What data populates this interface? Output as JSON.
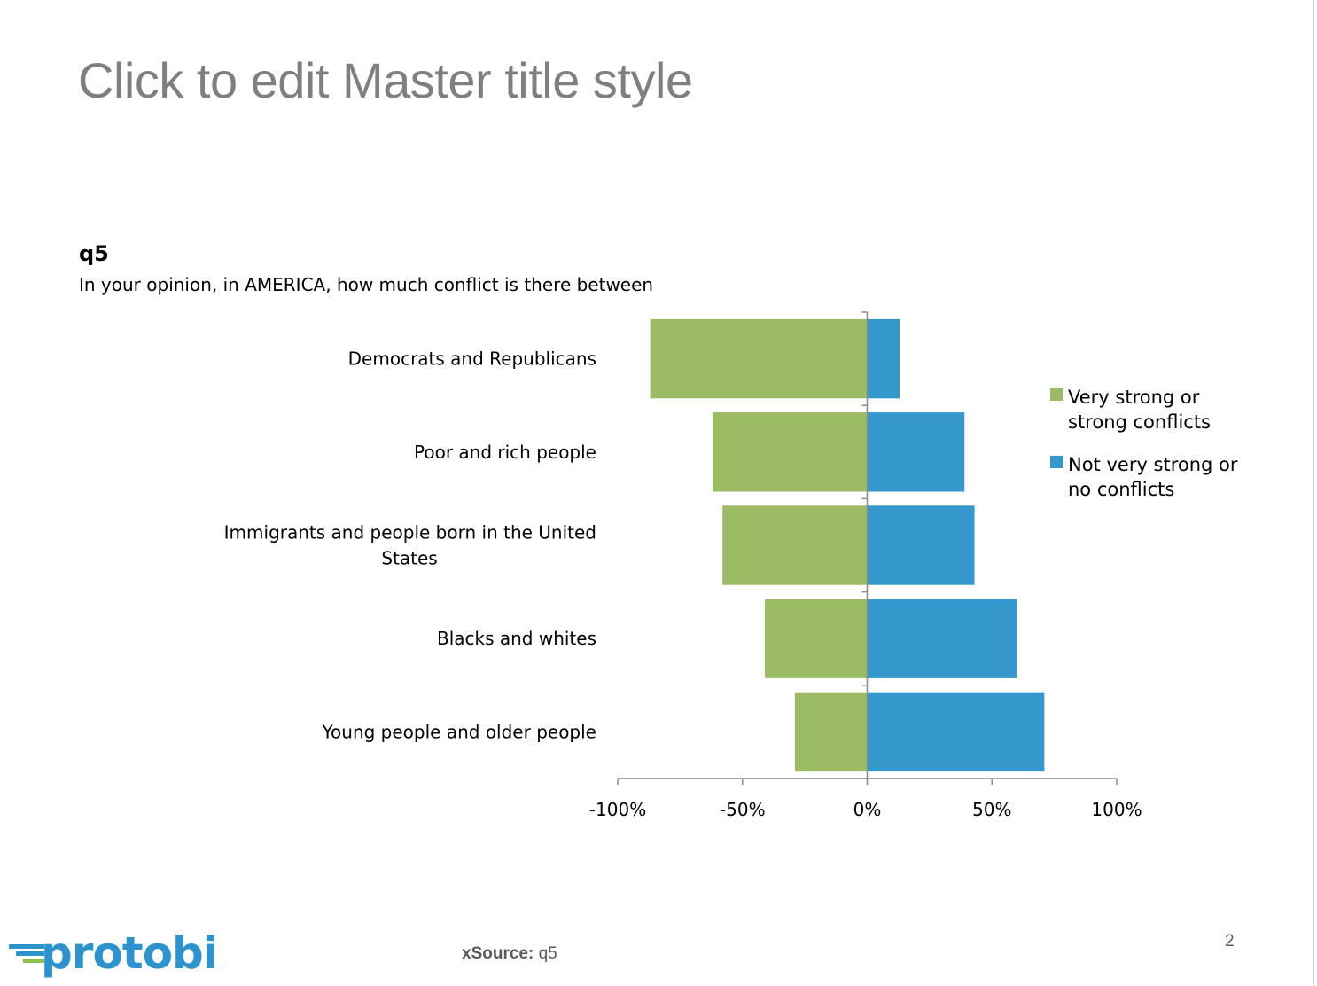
{
  "slide": {
    "title": "Click to edit Master title style",
    "question_id": "q5",
    "question_text": "In your opinion, in AMERICA, how much conflict is there between",
    "source_label": "xSource:",
    "source_value": "q5",
    "page_number": "2",
    "logo_text": "protobi"
  },
  "colors": {
    "green": "#9bbb64",
    "blue": "#3598cc"
  },
  "chart_data": {
    "type": "bar",
    "orientation": "horizontal",
    "stacking": "diverging",
    "categories": [
      [
        "Democrats and Republicans"
      ],
      [
        "Poor and rich people"
      ],
      [
        "Immigrants and people born in the United",
        "States"
      ],
      [
        "Blacks and whites"
      ],
      [
        "Young people and older people"
      ]
    ],
    "series": [
      {
        "name": "Very strong or strong conflicts",
        "legend_lines": [
          "Very strong or",
          "strong conflicts"
        ],
        "color": "#9bbb64",
        "values": [
          -87,
          -62,
          -58,
          -41,
          -29
        ]
      },
      {
        "name": "Not very strong or no conflicts",
        "legend_lines": [
          "Not very strong or",
          "no conflicts"
        ],
        "color": "#3598cc",
        "values": [
          13,
          39,
          43,
          60,
          71
        ]
      }
    ],
    "xlim": [
      -100,
      100
    ],
    "x_ticks": [
      -100,
      -50,
      0,
      50,
      100
    ],
    "x_tick_labels": [
      "-100%",
      "-50%",
      "0%",
      "50%",
      "100%"
    ],
    "legend_position": "right",
    "grid": false
  }
}
